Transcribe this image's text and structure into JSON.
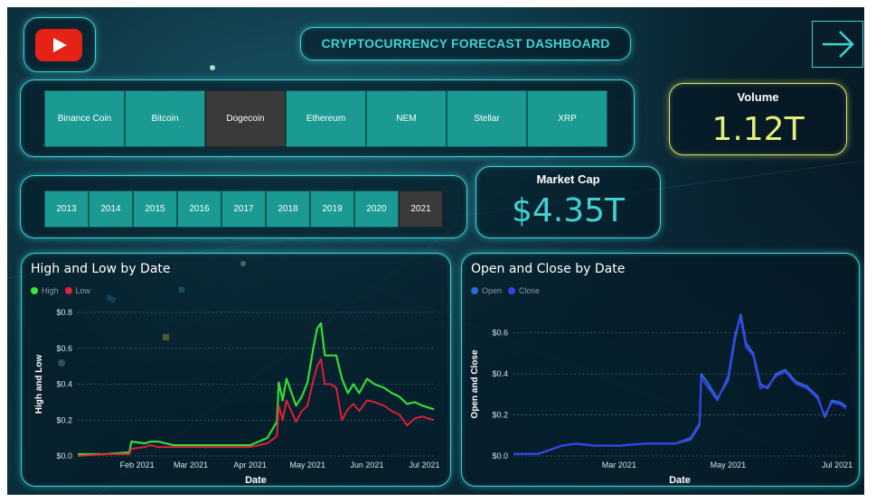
{
  "dashboard_title": "CRYPTOCURRENCY FORECAST DASHBOARD",
  "colors": {
    "accent": "#3fd3d3",
    "tile": "#1a9a92",
    "tile_selected": "#3a3a3a",
    "volume_border": "#d7e36a",
    "volume_value": "#e3ef7a",
    "marketcap_value": "#3fd3d3",
    "high": "#39e639",
    "low": "#e8203a",
    "open": "#2b6be0",
    "close": "#3b3fe8"
  },
  "icons": {
    "logo": "youtube-play-icon",
    "nav": "arrow-right-icon"
  },
  "coins": [
    "Binance Coin",
    "Bitcoin",
    "Dogecoin",
    "Ethereum",
    "NEM",
    "Stellar",
    "XRP"
  ],
  "selected_coin": "Dogecoin",
  "years": [
    "2013",
    "2014",
    "2015",
    "2016",
    "2017",
    "2018",
    "2019",
    "2020",
    "2021"
  ],
  "selected_year": "2021",
  "volume": {
    "label": "Volume",
    "value": "1.12T"
  },
  "market_cap": {
    "label": "Market Cap",
    "value": "$4.35T"
  },
  "chart_data": [
    {
      "type": "line",
      "title": "High and Low by Date",
      "xlabel": "Date",
      "ylabel": "High and Low",
      "ylim": [
        0,
        0.8
      ],
      "yticks": [
        "$0.0",
        "$0.2",
        "$0.4",
        "$0.6",
        "$0.8"
      ],
      "xticks": [
        "Feb 2021",
        "Mar 2021",
        "Apr 2021",
        "May 2021",
        "Jun 2021",
        "Jul 2021"
      ],
      "legend_position": "top-left",
      "grid": true,
      "x": [
        "2021-01-01",
        "2021-01-15",
        "2021-01-28",
        "2021-01-29",
        "2021-02-05",
        "2021-02-08",
        "2021-02-12",
        "2021-02-20",
        "2021-03-01",
        "2021-03-15",
        "2021-04-01",
        "2021-04-10",
        "2021-04-15",
        "2021-04-16",
        "2021-04-18",
        "2021-04-20",
        "2021-04-25",
        "2021-04-28",
        "2021-05-01",
        "2021-05-04",
        "2021-05-06",
        "2021-05-08",
        "2021-05-10",
        "2021-05-13",
        "2021-05-16",
        "2021-05-19",
        "2021-05-22",
        "2021-05-25",
        "2021-05-28",
        "2021-06-01",
        "2021-06-05",
        "2021-06-10",
        "2021-06-14",
        "2021-06-18",
        "2021-06-22",
        "2021-06-26",
        "2021-06-30",
        "2021-07-03",
        "2021-07-06"
      ],
      "series": [
        {
          "name": "High",
          "values": [
            0.01,
            0.01,
            0.02,
            0.08,
            0.07,
            0.08,
            0.08,
            0.06,
            0.06,
            0.06,
            0.06,
            0.1,
            0.19,
            0.41,
            0.31,
            0.43,
            0.28,
            0.33,
            0.41,
            0.6,
            0.71,
            0.74,
            0.56,
            0.56,
            0.56,
            0.43,
            0.35,
            0.4,
            0.35,
            0.43,
            0.4,
            0.38,
            0.35,
            0.33,
            0.29,
            0.3,
            0.28,
            0.27,
            0.26
          ]
        },
        {
          "name": "Low",
          "values": [
            0.0,
            0.01,
            0.01,
            0.04,
            0.05,
            0.06,
            0.05,
            0.05,
            0.05,
            0.05,
            0.05,
            0.07,
            0.11,
            0.28,
            0.2,
            0.31,
            0.19,
            0.25,
            0.28,
            0.42,
            0.5,
            0.54,
            0.4,
            0.4,
            0.38,
            0.2,
            0.26,
            0.29,
            0.25,
            0.31,
            0.3,
            0.28,
            0.25,
            0.23,
            0.17,
            0.21,
            0.22,
            0.21,
            0.2
          ]
        }
      ]
    },
    {
      "type": "line",
      "title": "Open and Close by Date",
      "xlabel": "Date",
      "ylabel": "Open and Close",
      "ylim": [
        0,
        0.7
      ],
      "yticks": [
        "$0.0",
        "$0.2",
        "$0.4",
        "$0.6"
      ],
      "xticks": [
        "Mar 2021",
        "May 2021",
        "Jul 2021"
      ],
      "legend_position": "top-left",
      "grid": true,
      "x": [
        "2021-01-01",
        "2021-01-15",
        "2021-01-28",
        "2021-02-05",
        "2021-02-15",
        "2021-03-01",
        "2021-03-15",
        "2021-04-01",
        "2021-04-10",
        "2021-04-15",
        "2021-04-16",
        "2021-04-20",
        "2021-04-25",
        "2021-05-01",
        "2021-05-05",
        "2021-05-08",
        "2021-05-11",
        "2021-05-15",
        "2021-05-19",
        "2021-05-23",
        "2021-05-28",
        "2021-06-02",
        "2021-06-08",
        "2021-06-14",
        "2021-06-20",
        "2021-06-24",
        "2021-06-28",
        "2021-07-03",
        "2021-07-06"
      ],
      "series": [
        {
          "name": "Open",
          "values": [
            0.01,
            0.01,
            0.05,
            0.06,
            0.05,
            0.05,
            0.06,
            0.06,
            0.08,
            0.15,
            0.4,
            0.35,
            0.28,
            0.37,
            0.58,
            0.69,
            0.55,
            0.5,
            0.35,
            0.33,
            0.4,
            0.42,
            0.36,
            0.34,
            0.29,
            0.19,
            0.27,
            0.26,
            0.24
          ]
        },
        {
          "name": "Close",
          "values": [
            0.01,
            0.01,
            0.05,
            0.06,
            0.05,
            0.05,
            0.06,
            0.06,
            0.09,
            0.16,
            0.38,
            0.33,
            0.27,
            0.39,
            0.6,
            0.67,
            0.53,
            0.49,
            0.33,
            0.34,
            0.39,
            0.41,
            0.35,
            0.33,
            0.28,
            0.2,
            0.26,
            0.25,
            0.23
          ]
        }
      ]
    }
  ]
}
